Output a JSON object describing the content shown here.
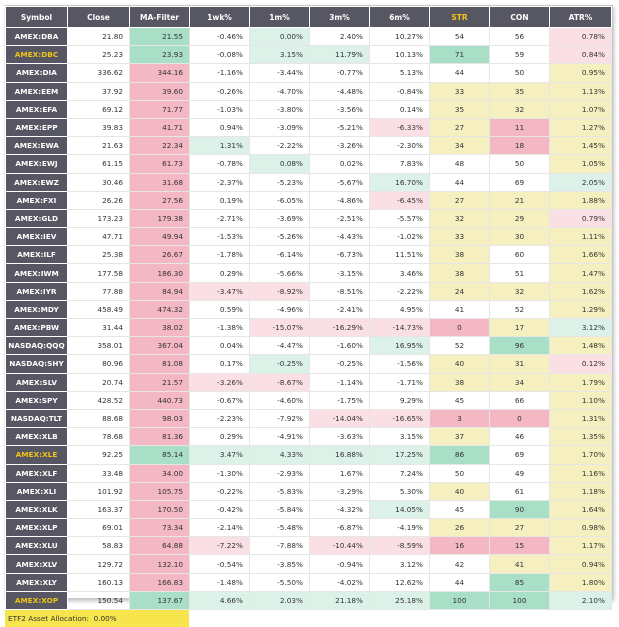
{
  "headers": [
    "Symbol",
    "Close",
    "MA-Filter",
    "1wk%",
    "1m%",
    "3m%",
    "6m%",
    "STR",
    "CON",
    "ATR%"
  ],
  "header_colors": {
    "default": "#ffffff",
    "STR": "#f0c419"
  },
  "rows": [
    {
      "symbol": "AMEX:DBA",
      "highlight": false,
      "cells": [
        "21.80",
        "21.55",
        "-0.46%",
        "0.00%",
        "2.40%",
        "10.27%",
        "54",
        "56",
        "0.78%"
      ],
      "colors": [
        "",
        "g",
        "",
        "lg",
        "",
        "",
        "",
        "",
        "lr"
      ]
    },
    {
      "symbol": "AMEX:DBC",
      "highlight": true,
      "cells": [
        "25.23",
        "23.93",
        "-0.08%",
        "3.15%",
        "11.79%",
        "10.13%",
        "71",
        "59",
        "0.84%"
      ],
      "colors": [
        "",
        "g",
        "",
        "lg",
        "lg",
        "",
        "g",
        "",
        "lr"
      ]
    },
    {
      "symbol": "AMEX:DIA",
      "highlight": false,
      "cells": [
        "336.62",
        "344.16",
        "-1.16%",
        "-3.44%",
        "-0.77%",
        "5.13%",
        "44",
        "50",
        "0.95%"
      ],
      "colors": [
        "",
        "r",
        "",
        "",
        "",
        "",
        "",
        "",
        "y"
      ]
    },
    {
      "symbol": "AMEX:EEM",
      "highlight": false,
      "cells": [
        "37.92",
        "39.60",
        "-0.26%",
        "-4.70%",
        "-4.48%",
        "-0.84%",
        "33",
        "35",
        "1.13%"
      ],
      "colors": [
        "",
        "r",
        "",
        "",
        "",
        "",
        "y",
        "y",
        "y"
      ]
    },
    {
      "symbol": "AMEX:EFA",
      "highlight": false,
      "cells": [
        "69.12",
        "71.77",
        "-1.03%",
        "-3.80%",
        "-3.56%",
        "0.14%",
        "35",
        "32",
        "1.07%"
      ],
      "colors": [
        "",
        "r",
        "",
        "",
        "",
        "",
        "y",
        "y",
        "y"
      ]
    },
    {
      "symbol": "AMEX:EPP",
      "highlight": false,
      "cells": [
        "39.83",
        "41.71",
        "0.94%",
        "-3.09%",
        "-5.21%",
        "-6.33%",
        "27",
        "11",
        "1.27%"
      ],
      "colors": [
        "",
        "r",
        "",
        "",
        "",
        "lr",
        "y",
        "r",
        "y"
      ]
    },
    {
      "symbol": "AMEX:EWA",
      "highlight": false,
      "cells": [
        "21.63",
        "22.34",
        "1.31%",
        "-2.22%",
        "-3.26%",
        "-2.30%",
        "34",
        "18",
        "1.45%"
      ],
      "colors": [
        "",
        "r",
        "lg",
        "",
        "",
        "",
        "y",
        "r",
        "y"
      ]
    },
    {
      "symbol": "AMEX:EWJ",
      "highlight": false,
      "cells": [
        "61.15",
        "61.73",
        "-0.78%",
        "0.08%",
        "0.02%",
        "7.83%",
        "48",
        "50",
        "1.05%"
      ],
      "colors": [
        "",
        "r",
        "",
        "lg",
        "",
        "",
        "",
        "",
        "y"
      ]
    },
    {
      "symbol": "AMEX:EWZ",
      "highlight": false,
      "cells": [
        "30.46",
        "31.68",
        "-2.37%",
        "-5.23%",
        "-5.67%",
        "16.70%",
        "44",
        "69",
        "2.05%"
      ],
      "colors": [
        "",
        "r",
        "",
        "",
        "",
        "lg",
        "",
        "",
        "lg"
      ]
    },
    {
      "symbol": "AMEX:FXI",
      "highlight": false,
      "cells": [
        "26.26",
        "27.56",
        "0.19%",
        "-6.05%",
        "-4.86%",
        "-6.45%",
        "27",
        "21",
        "1.88%"
      ],
      "colors": [
        "",
        "r",
        "",
        "",
        "",
        "lr",
        "y",
        "y",
        "y"
      ]
    },
    {
      "symbol": "AMEX:GLD",
      "highlight": false,
      "cells": [
        "173.23",
        "179.38",
        "-2.71%",
        "-3.69%",
        "-2.51%",
        "-5.57%",
        "32",
        "29",
        "0.79%"
      ],
      "colors": [
        "",
        "r",
        "",
        "",
        "",
        "",
        "y",
        "y",
        "lr"
      ]
    },
    {
      "symbol": "AMEX:IEV",
      "highlight": false,
      "cells": [
        "47.71",
        "49.94",
        "-1.53%",
        "-5.26%",
        "-4.43%",
        "-1.02%",
        "33",
        "30",
        "1.11%"
      ],
      "colors": [
        "",
        "r",
        "",
        "",
        "",
        "",
        "y",
        "y",
        "y"
      ]
    },
    {
      "symbol": "AMEX:ILF",
      "highlight": false,
      "cells": [
        "25.38",
        "26.67",
        "-1.78%",
        "-6.14%",
        "-6.73%",
        "11.51%",
        "38",
        "60",
        "1.66%"
      ],
      "colors": [
        "",
        "r",
        "",
        "",
        "",
        "",
        "y",
        "",
        "y"
      ]
    },
    {
      "symbol": "AMEX:IWM",
      "highlight": false,
      "cells": [
        "177.58",
        "186.30",
        "0.29%",
        "-5.66%",
        "-3.15%",
        "3.46%",
        "38",
        "51",
        "1.47%"
      ],
      "colors": [
        "",
        "r",
        "",
        "",
        "",
        "",
        "y",
        "",
        "y"
      ]
    },
    {
      "symbol": "AMEX:IYR",
      "highlight": false,
      "cells": [
        "77.88",
        "84.94",
        "-3.47%",
        "-8.92%",
        "-8.51%",
        "-2.22%",
        "24",
        "32",
        "1.62%"
      ],
      "colors": [
        "",
        "r",
        "lr",
        "lr",
        "",
        "",
        "y",
        "y",
        "y"
      ]
    },
    {
      "symbol": "AMEX:MDY",
      "highlight": false,
      "cells": [
        "458.49",
        "474.32",
        "0.59%",
        "-4.96%",
        "-2.41%",
        "4.95%",
        "41",
        "52",
        "1.29%"
      ],
      "colors": [
        "",
        "r",
        "",
        "",
        "",
        "",
        "",
        "",
        "y"
      ]
    },
    {
      "symbol": "AMEX:PBW",
      "highlight": false,
      "cells": [
        "31.44",
        "38.02",
        "-1.38%",
        "-15.07%",
        "-16.29%",
        "-14.73%",
        "0",
        "17",
        "3.12%"
      ],
      "colors": [
        "",
        "r",
        "",
        "lr",
        "lr",
        "lr",
        "r",
        "y",
        "lg"
      ]
    },
    {
      "symbol": "NASDAQ:QQQ",
      "highlight": false,
      "cells": [
        "358.01",
        "367.04",
        "0.04%",
        "-4.47%",
        "-1.60%",
        "16.95%",
        "52",
        "96",
        "1.48%"
      ],
      "colors": [
        "",
        "r",
        "",
        "",
        "",
        "lg",
        "",
        "g",
        "y"
      ]
    },
    {
      "symbol": "NASDAQ:SHY",
      "highlight": false,
      "cells": [
        "80.96",
        "81.08",
        "0.17%",
        "-0.25%",
        "-0.25%",
        "-1.56%",
        "40",
        "31",
        "0.12%"
      ],
      "colors": [
        "",
        "r",
        "",
        "lg",
        "",
        "",
        "y",
        "y",
        "lr"
      ]
    },
    {
      "symbol": "AMEX:SLV",
      "highlight": false,
      "cells": [
        "20.74",
        "21.57",
        "-3.26%",
        "-8.67%",
        "-1.14%",
        "-1.71%",
        "38",
        "34",
        "1.79%"
      ],
      "colors": [
        "",
        "r",
        "lr",
        "lr",
        "",
        "",
        "y",
        "y",
        "y"
      ]
    },
    {
      "symbol": "AMEX:SPY",
      "highlight": false,
      "cells": [
        "428.52",
        "440.73",
        "-0.67%",
        "-4.60%",
        "-1.75%",
        "9.29%",
        "45",
        "66",
        "1.10%"
      ],
      "colors": [
        "",
        "r",
        "",
        "",
        "",
        "",
        "",
        "",
        "y"
      ]
    },
    {
      "symbol": "NASDAQ:TLT",
      "highlight": false,
      "cells": [
        "88.68",
        "98.03",
        "-2.23%",
        "-7.92%",
        "-14.04%",
        "-16.65%",
        "3",
        "0",
        "1.31%"
      ],
      "colors": [
        "",
        "r",
        "",
        "",
        "lr",
        "lr",
        "r",
        "r",
        "y"
      ]
    },
    {
      "symbol": "AMEX:XLB",
      "highlight": false,
      "cells": [
        "78.68",
        "81.36",
        "0.29%",
        "-4.91%",
        "-3.63%",
        "3.15%",
        "37",
        "46",
        "1.35%"
      ],
      "colors": [
        "",
        "r",
        "",
        "",
        "",
        "",
        "y",
        "",
        "y"
      ]
    },
    {
      "symbol": "AMEX:XLE",
      "highlight": true,
      "cells": [
        "92.25",
        "85.14",
        "3.47%",
        "4.33%",
        "16.88%",
        "17.25%",
        "86",
        "69",
        "1.70%"
      ],
      "colors": [
        "",
        "g",
        "lg",
        "lg",
        "lg",
        "lg",
        "g",
        "",
        "y"
      ]
    },
    {
      "symbol": "AMEX:XLF",
      "highlight": false,
      "cells": [
        "33.48",
        "34.00",
        "-1.30%",
        "-2.93%",
        "1.67%",
        "7.24%",
        "50",
        "49",
        "1.16%"
      ],
      "colors": [
        "",
        "r",
        "",
        "",
        "",
        "",
        "",
        "",
        "y"
      ]
    },
    {
      "symbol": "AMEX:XLI",
      "highlight": false,
      "cells": [
        "101.92",
        "105.75",
        "-0.22%",
        "-5.83%",
        "-3.29%",
        "5.30%",
        "40",
        "61",
        "1.18%"
      ],
      "colors": [
        "",
        "r",
        "",
        "",
        "",
        "",
        "y",
        "",
        "y"
      ]
    },
    {
      "symbol": "AMEX:XLK",
      "highlight": false,
      "cells": [
        "163.37",
        "170.50",
        "-0.42%",
        "-5.84%",
        "-4.32%",
        "14.05%",
        "45",
        "90",
        "1.64%"
      ],
      "colors": [
        "",
        "r",
        "",
        "",
        "",
        "lg",
        "",
        "g",
        "y"
      ]
    },
    {
      "symbol": "AMEX:XLP",
      "highlight": false,
      "cells": [
        "69.01",
        "73.34",
        "-2.14%",
        "-5.48%",
        "-6.87%",
        "-4.19%",
        "26",
        "27",
        "0.98%"
      ],
      "colors": [
        "",
        "r",
        "",
        "",
        "",
        "",
        "y",
        "y",
        "y"
      ]
    },
    {
      "symbol": "AMEX:XLU",
      "highlight": false,
      "cells": [
        "58.83",
        "64.88",
        "-7.22%",
        "-7.88%",
        "-10.44%",
        "-8.59%",
        "16",
        "15",
        "1.17%"
      ],
      "colors": [
        "",
        "r",
        "lr",
        "",
        "lr",
        "lr",
        "r",
        "r",
        "y"
      ]
    },
    {
      "symbol": "AMEX:XLV",
      "highlight": false,
      "cells": [
        "129.72",
        "132.10",
        "-0.54%",
        "-3.85%",
        "-0.94%",
        "3.12%",
        "42",
        "41",
        "0.94%"
      ],
      "colors": [
        "",
        "r",
        "",
        "",
        "",
        "",
        "",
        "y",
        "y"
      ]
    },
    {
      "symbol": "AMEX:XLY",
      "highlight": false,
      "cells": [
        "160.13",
        "166.83",
        "-1.48%",
        "-5.50%",
        "-4.02%",
        "12.62%",
        "44",
        "85",
        "1.80%"
      ],
      "colors": [
        "",
        "r",
        "",
        "",
        "",
        "",
        "",
        "g",
        "y"
      ]
    },
    {
      "symbol": "AMEX:XOP",
      "highlight": true,
      "cells": [
        "150.54",
        "137.67",
        "4.66%",
        "2.03%",
        "21.18%",
        "25.18%",
        "100",
        "100",
        "2.10%"
      ],
      "colors": [
        "",
        "g",
        "lg",
        "lg",
        "lg",
        "lg",
        "g",
        "g",
        "lg"
      ]
    }
  ],
  "footer": {
    "label": "ETF2 Asset Allocation:",
    "value": "0.00%"
  }
}
